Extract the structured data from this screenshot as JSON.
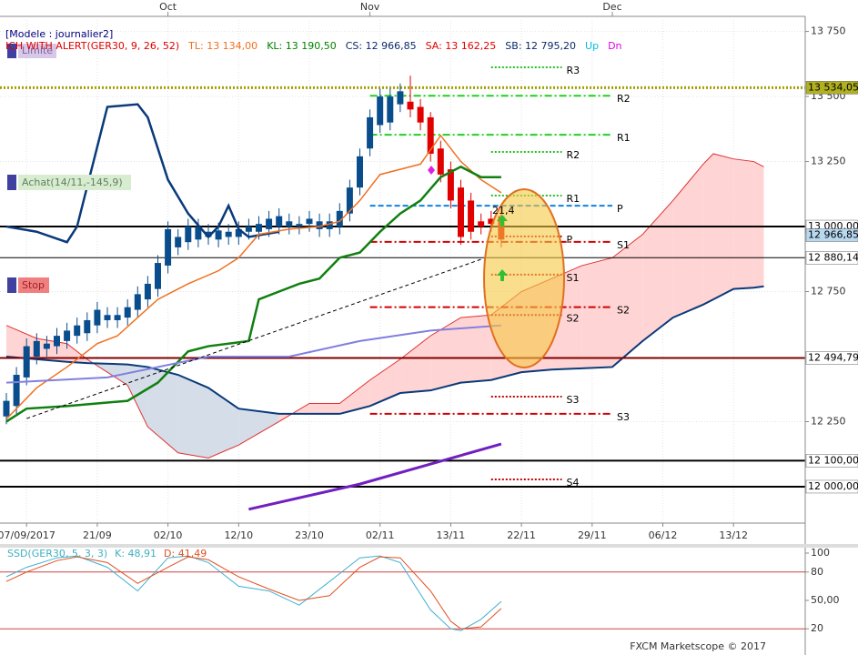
{
  "chart_data": [
    {
      "type": "candlestick",
      "header": [
        {
          "text": "[Modele : journalier2]",
          "color": "#000080"
        },
        {
          "text": "ICH WITH ALERT(GER30, 9, 26, 52)",
          "color": "#e00000"
        },
        {
          "text": "TL: 13 134,00",
          "color": "#f07020"
        },
        {
          "text": "KL: 13 190,50",
          "color": "#008000"
        },
        {
          "text": "CS: 12 966,85",
          "color": "#0a2a6a"
        },
        {
          "text": "SA: 13 162,25",
          "color": "#e00000"
        },
        {
          "text": "SB: 12 795,20",
          "color": "#0a2a6a"
        },
        {
          "text": "Up",
          "color": "#00c0e0"
        },
        {
          "text": "Dn",
          "color": "#e000e0"
        }
      ],
      "boxes": [
        "Limite",
        "Achat(14/11,-145,9)",
        "Stop"
      ],
      "annotation": "21,4",
      "footer": "FXCM Marketscope © 2017",
      "xlim": [
        -0.63,
        79.1
      ],
      "ylim": [
        11860,
        13794
      ],
      "xticks": [
        {
          "value": 2,
          "label": "07/09/2017"
        },
        {
          "value": 9,
          "label": "21/09"
        },
        {
          "value": 16,
          "label": "02/10"
        },
        {
          "value": 23,
          "label": "12/10"
        },
        {
          "value": 30,
          "label": "23/10"
        },
        {
          "value": 37,
          "label": "02/11"
        },
        {
          "value": 44,
          "label": "13/11"
        },
        {
          "value": 51,
          "label": "22/11"
        },
        {
          "value": 58,
          "label": "29/11"
        },
        {
          "value": 65,
          "label": "06/12"
        },
        {
          "value": 72,
          "label": "13/12"
        }
      ],
      "month_ticks": [
        {
          "value": 16,
          "label": "Oct"
        },
        {
          "value": 36,
          "label": "Nov"
        },
        {
          "value": 60,
          "label": "Dec"
        }
      ],
      "yticks": [
        {
          "value": 13750,
          "label": "13 750"
        },
        {
          "value": 13500,
          "label": "13 500"
        },
        {
          "value": 13250,
          "label": "13 250"
        },
        {
          "value": 12750,
          "label": "12 750"
        },
        {
          "value": 12250,
          "label": "12 250"
        }
      ],
      "levels": [
        {
          "value": 13534.05,
          "label": "13 534,05",
          "color": "#a0a000",
          "box": "#b0b020"
        },
        {
          "value": 13000,
          "label": "13 000,00",
          "color": "#000000",
          "box": "#ffffff"
        },
        {
          "value": 12966.85,
          "label": "12 966,85",
          "color": null,
          "box": "#b8d8f0"
        },
        {
          "value": 12880.14,
          "label": "12 880,14",
          "color": "#000000",
          "box": "#ffffff"
        },
        {
          "value": 12494.79,
          "label": "12 494,79",
          "color": "#800000",
          "box": "#ffffff"
        },
        {
          "value": 12100,
          "label": "12 100,00",
          "color": "#000000",
          "box": "#ffffff"
        },
        {
          "value": 12000,
          "label": "12 000,00",
          "color": "#000000",
          "box": "#ffffff"
        }
      ],
      "open": [
        12270,
        12310,
        12420,
        12500,
        12530,
        12540,
        12560,
        12580,
        12590,
        12620,
        12640,
        12640,
        12650,
        12680,
        12720,
        12760,
        12850,
        12920,
        12940,
        12950,
        12960,
        12950,
        12960,
        12960,
        12980,
        12980,
        12990,
        13000,
        13000,
        13000,
        13010,
        12990,
        12990,
        13000,
        13050,
        13150,
        13300,
        13390,
        13400,
        13470,
        13480,
        13460,
        13420,
        13300,
        13220,
        13150,
        13100,
        13020,
        13030,
        13040
      ],
      "high": [
        12360,
        12460,
        12570,
        12590,
        12580,
        12610,
        12630,
        12650,
        12670,
        12710,
        12690,
        12690,
        12720,
        12770,
        12810,
        12890,
        13020,
        12990,
        13030,
        13030,
        13010,
        13015,
        13010,
        13020,
        13030,
        13040,
        13060,
        13070,
        13050,
        13040,
        13060,
        13050,
        13050,
        13090,
        13180,
        13300,
        13450,
        13530,
        13530,
        13550,
        13580,
        13490,
        13440,
        13330,
        13250,
        13180,
        13130,
        13050,
        13060,
        13070
      ],
      "low": [
        12240,
        12280,
        12390,
        12470,
        12500,
        12510,
        12530,
        12550,
        12560,
        12590,
        12610,
        12610,
        12620,
        12650,
        12690,
        12730,
        12820,
        12890,
        12910,
        12920,
        12930,
        12920,
        12930,
        12930,
        12950,
        12950,
        12960,
        12970,
        12970,
        12970,
        12980,
        12960,
        12960,
        12970,
        13020,
        13120,
        13270,
        13360,
        13370,
        13440,
        13420,
        13370,
        13250,
        13170,
        13070,
        12930,
        12950,
        12970,
        12980,
        12920
      ],
      "close": [
        12330,
        12430,
        12540,
        12560,
        12550,
        12580,
        12600,
        12620,
        12640,
        12680,
        12660,
        12660,
        12690,
        12740,
        12780,
        12860,
        12990,
        12960,
        13000,
        13000,
        12980,
        12985,
        12980,
        12990,
        13000,
        13010,
        13030,
        13040,
        13020,
        13010,
        13030,
        13020,
        13020,
        13060,
        13150,
        13270,
        13420,
        13500,
        13500,
        13520,
        13450,
        13400,
        13280,
        13200,
        13100,
        12960,
        12980,
        13000,
        13010,
        12950
      ],
      "up_color": "#0a4d8c",
      "down_color": "#e00000",
      "cloud": {
        "x": [
          0,
          3,
          6,
          8,
          12,
          14,
          17,
          20,
          23,
          27,
          30,
          33,
          36,
          39,
          42,
          45,
          48,
          51,
          54,
          57,
          60,
          63,
          66,
          69,
          70,
          72,
          74,
          75
        ],
        "span_a": [
          12620,
          12570,
          12550,
          12490,
          12390,
          12230,
          12130,
          12110,
          12160,
          12250,
          12320,
          12320,
          12410,
          12490,
          12580,
          12650,
          12660,
          12750,
          12800,
          12850,
          12880,
          12970,
          13100,
          13240,
          13280,
          13260,
          13250,
          13230
        ],
        "span_b": [
          12500,
          12490,
          12480,
          12475,
          12470,
          12460,
          12430,
          12380,
          12300,
          12280,
          12280,
          12280,
          12310,
          12360,
          12370,
          12400,
          12410,
          12440,
          12450,
          12455,
          12460,
          12560,
          12650,
          12700,
          12720,
          12760,
          12765,
          12770
        ],
        "up_fill": "#ffd4d4",
        "down_fill": "#d4dde8",
        "a_color": "#e03030",
        "b_color": "#0a3a7a"
      },
      "series": [
        {
          "name": "Chikou",
          "color": "#0a3a7a",
          "width": 2.5,
          "x": [
            0,
            3,
            6,
            7,
            10,
            13,
            14,
            16,
            18,
            20,
            21,
            22,
            23,
            24,
            27
          ],
          "values": [
            13000,
            12980,
            12940,
            13000,
            13460,
            13470,
            13420,
            13180,
            13050,
            12960,
            13000,
            13080,
            12990,
            12960,
            12980
          ]
        },
        {
          "name": "Tenkan",
          "color": "#f07020",
          "width": 1.5,
          "x": [
            0,
            3,
            6,
            9,
            11,
            13,
            15,
            18,
            21,
            23,
            25,
            28,
            31,
            33,
            35,
            37,
            39,
            41,
            43,
            45,
            47,
            49
          ],
          "values": [
            12260,
            12380,
            12460,
            12550,
            12580,
            12650,
            12720,
            12780,
            12830,
            12880,
            12970,
            12990,
            13000,
            13020,
            13100,
            13200,
            13220,
            13240,
            13350,
            13250,
            13180,
            13130
          ]
        },
        {
          "name": "Kijun",
          "color": "#108010",
          "width": 2.5,
          "x": [
            0,
            2,
            6,
            12,
            15,
            18,
            20,
            24,
            25,
            27,
            29,
            31,
            33,
            35,
            37,
            39,
            41,
            43,
            45,
            47,
            49
          ],
          "values": [
            12250,
            12300,
            12310,
            12330,
            12400,
            12520,
            12540,
            12560,
            12720,
            12750,
            12780,
            12800,
            12880,
            12900,
            12980,
            13050,
            13100,
            13190,
            13230,
            13190,
            13190
          ]
        },
        {
          "name": "SMA",
          "color": "#8080e0",
          "width": 2,
          "x": [
            0,
            10,
            20,
            28,
            35,
            42,
            49
          ],
          "values": [
            12400,
            12420,
            12500,
            12500,
            12560,
            12600,
            12620
          ]
        },
        {
          "name": "Trend",
          "color": "#7020c0",
          "width": 3,
          "x": [
            24,
            35,
            45,
            49
          ],
          "values": [
            11913,
            12010,
            12120,
            12164
          ]
        },
        {
          "name": "Channel",
          "color": "#000000",
          "width": 1,
          "dash": "4 3",
          "x": [
            2,
            47
          ],
          "values": [
            12262,
            12874
          ]
        }
      ],
      "pivots": [
        {
          "label": "R3",
          "value": 13612,
          "from": 48,
          "to": 55,
          "color": "#20c020",
          "dash": "2 2"
        },
        {
          "label": "R2",
          "value": 13503,
          "from": 36,
          "to": 60,
          "color": "#20d020",
          "dash": "8 3 2 3"
        },
        {
          "label": "R1",
          "value": 13353,
          "from": 36,
          "to": 60,
          "color": "#20d020",
          "dash": "8 3 2 3"
        },
        {
          "label": "R2",
          "value": 13287,
          "from": 48,
          "to": 55,
          "color": "#20c020",
          "dash": "2 2"
        },
        {
          "label": "R1",
          "value": 13119,
          "from": 48,
          "to": 55,
          "color": "#20c020",
          "dash": "2 2"
        },
        {
          "label": "P",
          "value": 13080,
          "from": 36,
          "to": 60,
          "color": "#1080e0",
          "dash": "6 3"
        },
        {
          "label": "P",
          "value": 12962,
          "from": 48,
          "to": 55,
          "color": "#c00000",
          "dash": "2 2"
        },
        {
          "label": "S1",
          "value": 12941,
          "from": 36,
          "to": 60,
          "color": "#d00000",
          "dash": "8 3 2 3"
        },
        {
          "label": "S1",
          "value": 12815,
          "from": 48,
          "to": 55,
          "color": "#c00000",
          "dash": "2 2"
        },
        {
          "label": "S2",
          "value": 12690,
          "from": 36,
          "to": 60,
          "color": "#d00000",
          "dash": "8 3 2 3"
        },
        {
          "label": "S2",
          "value": 12660,
          "from": 48,
          "to": 55,
          "color": "#c00000",
          "dash": "2 2"
        },
        {
          "label": "S3",
          "value": 12346,
          "from": 48,
          "to": 55,
          "color": "#c00000",
          "dash": "2 2"
        },
        {
          "label": "S3",
          "value": 12280,
          "from": 36,
          "to": 60,
          "color": "#d00000",
          "dash": "8 3 2 3"
        },
        {
          "label": "S4",
          "value": 12028,
          "from": 48,
          "to": 55,
          "color": "#c00000",
          "dash": "2 2"
        }
      ]
    },
    {
      "type": "line",
      "header": [
        {
          "text": "SSD(GER30, 5, 3, 3)",
          "color": "#40b0c0"
        },
        {
          "text": "K: 48,91",
          "color": "#40b0c0"
        },
        {
          "text": "D: 41,49",
          "color": "#e05020"
        }
      ],
      "ylim": [
        0,
        100
      ],
      "yticks": [
        100,
        80,
        {
          "value": 50,
          "label": "50,00"
        },
        20
      ],
      "levels": [
        80,
        20
      ],
      "series": [
        {
          "name": "K",
          "color": "#40b0d0",
          "x": [
            0,
            2,
            5,
            7,
            10,
            13,
            16,
            18,
            20,
            23,
            26,
            29,
            32,
            35,
            37,
            39,
            42,
            44,
            45,
            47,
            49
          ],
          "values": [
            75,
            85,
            95,
            97,
            85,
            60,
            95,
            97,
            90,
            65,
            60,
            45,
            70,
            95,
            97,
            90,
            40,
            20,
            18,
            30,
            48.91
          ]
        },
        {
          "name": "D",
          "color": "#e05020",
          "x": [
            0,
            2,
            5,
            7,
            10,
            13,
            16,
            18,
            20,
            23,
            26,
            29,
            32,
            35,
            37,
            39,
            42,
            44,
            45,
            47,
            49
          ],
          "values": [
            70,
            80,
            92,
            96,
            90,
            68,
            85,
            96,
            93,
            75,
            62,
            50,
            55,
            85,
            96,
            95,
            60,
            28,
            20,
            22,
            41.49
          ]
        }
      ]
    }
  ]
}
